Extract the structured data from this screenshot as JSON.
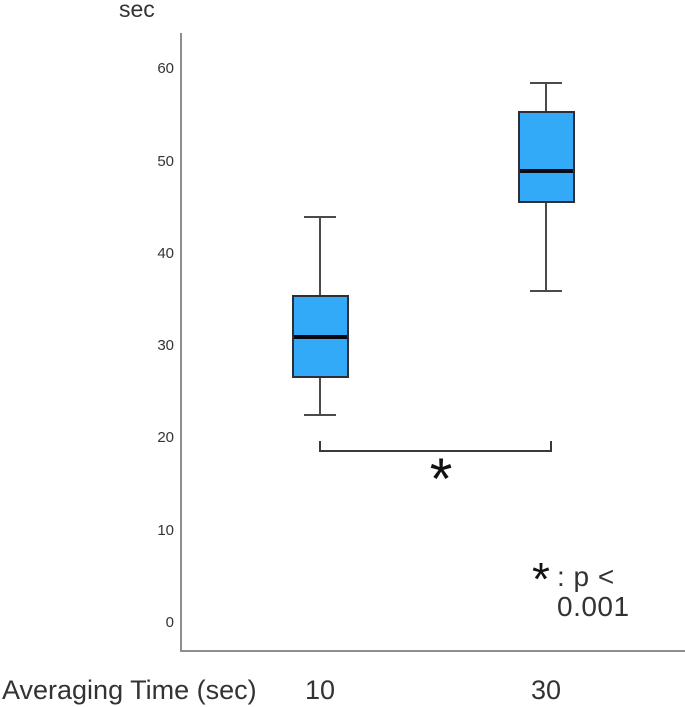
{
  "chart_data": {
    "type": "boxplot",
    "title": "",
    "y_axis": {
      "label": "sec",
      "ticks": [
        0,
        10,
        20,
        30,
        40,
        50,
        60
      ],
      "range": [
        0,
        63
      ],
      "grid": false
    },
    "x_axis": {
      "label": "Averaging Time (sec)",
      "categories": [
        "10",
        "30"
      ]
    },
    "boxes": [
      {
        "category": "10",
        "whisker_low": 22.5,
        "q1": 26.5,
        "median": 31,
        "q3": 35.5,
        "whisker_high": 44
      },
      {
        "category": "30",
        "whisker_low": 36,
        "q1": 45.5,
        "median": 49,
        "q3": 55.5,
        "whisker_high": 58.5
      }
    ],
    "significance": {
      "marker": "*",
      "note": ": p < 0.001",
      "between": [
        "10",
        "30"
      ]
    },
    "colors": {
      "box_fill": "#33aaf8",
      "box_border": "#2e2e38",
      "median": "#0a0a12",
      "whisker": "#4a4a4a",
      "axis": "#8e8e8e",
      "bracket": "#3a3a3a",
      "text": "#333333"
    },
    "legend_position": "bottom-right"
  }
}
